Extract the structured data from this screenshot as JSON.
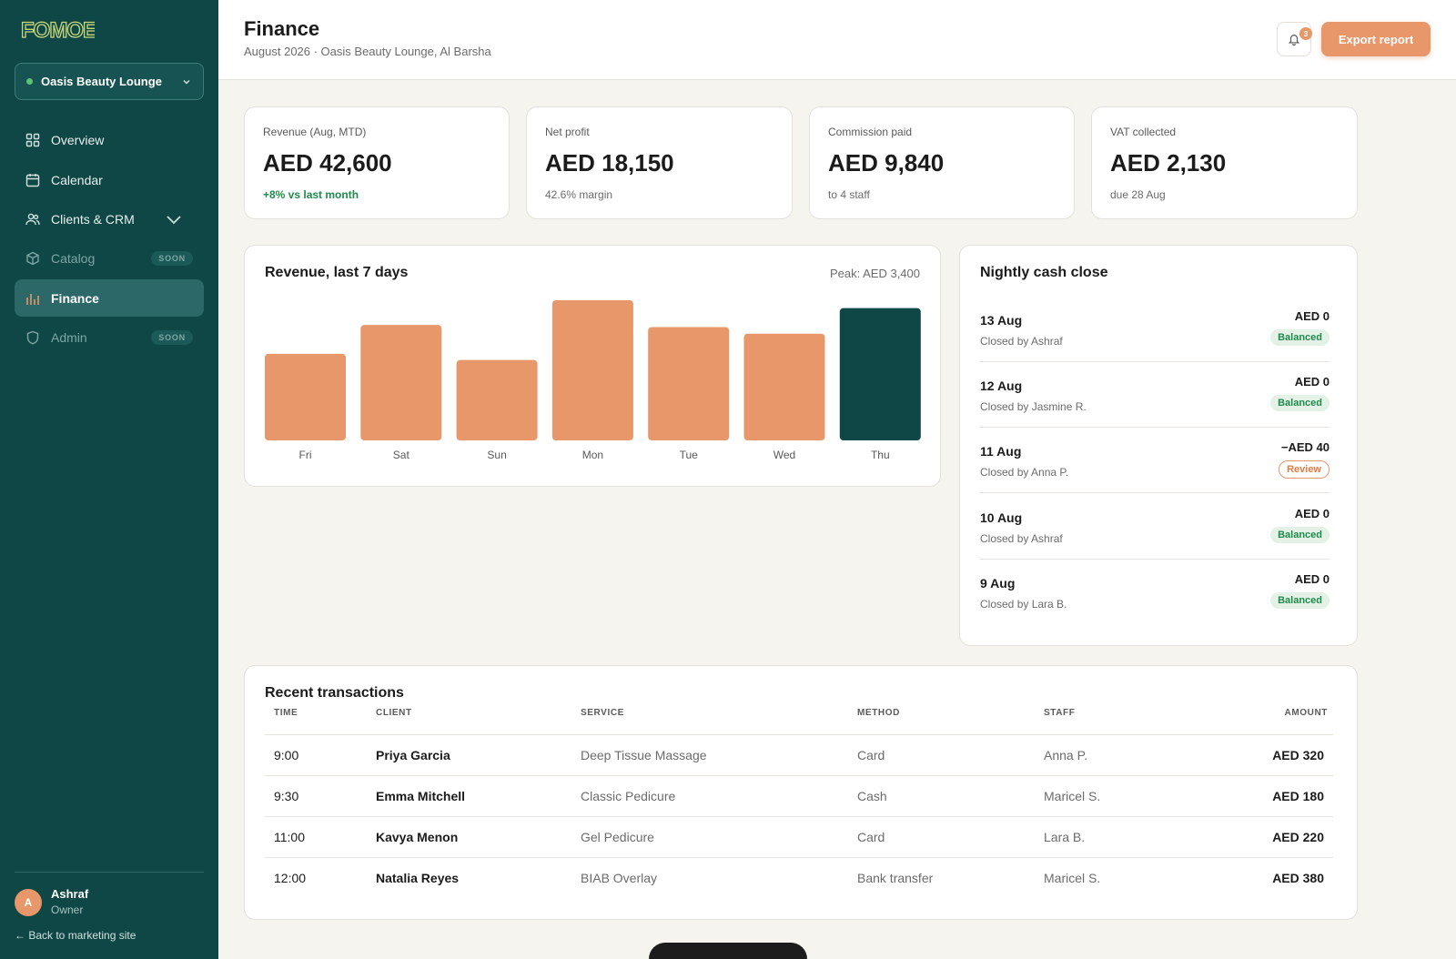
{
  "brand": {
    "logo_text": "FOMOE"
  },
  "sidebar": {
    "location": "Oasis Beauty Lounge",
    "items": [
      {
        "label": "Overview",
        "icon": "grid-icon"
      },
      {
        "label": "Calendar",
        "icon": "calendar-icon"
      },
      {
        "label": "Clients & CRM",
        "icon": "users-icon"
      },
      {
        "label": "Catalog",
        "icon": "box-icon",
        "badge": "SOON"
      },
      {
        "label": "Finance",
        "icon": "bar-chart-icon",
        "active": true
      },
      {
        "label": "Admin",
        "icon": "shield-icon",
        "badge": "SOON"
      }
    ],
    "user": {
      "initial": "A",
      "name": "Ashraf",
      "role": "Owner"
    },
    "back_link": "← Back to marketing site"
  },
  "header": {
    "title": "Finance",
    "subtitle": "August 2026 · Oasis Beauty Lounge, Al Barsha",
    "notifications": "3",
    "export_label": "Export report"
  },
  "kpis": [
    {
      "label": "Revenue (Aug, MTD)",
      "value": "AED 42,600",
      "sub": "+8% vs last month",
      "positive": true
    },
    {
      "label": "Net profit",
      "value": "AED 18,150",
      "sub": "42.6% margin"
    },
    {
      "label": "Commission paid",
      "value": "AED 9,840",
      "sub": "to 4 staff"
    },
    {
      "label": "VAT collected",
      "value": "AED 2,130",
      "sub": "due 28 Aug"
    }
  ],
  "revenue_chart": {
    "title": "Revenue, last 7 days",
    "peak_label": "Peak: AED 3,400"
  },
  "chart_data": {
    "type": "bar",
    "categories": [
      "Fri",
      "Sat",
      "Sun",
      "Mon",
      "Tue",
      "Wed",
      "Thu"
    ],
    "values": [
      2100,
      2800,
      1950,
      3400,
      2750,
      2590,
      3210
    ],
    "ylim": [
      0,
      3400
    ],
    "highlight_index": 6,
    "colors": {
      "default": "#e8976a",
      "highlight": "#0f4747"
    }
  },
  "cash_close": {
    "title": "Nightly cash close",
    "rows": [
      {
        "date": "13 Aug",
        "by": "Closed by Ashraf",
        "amount": "AED 0",
        "status": "Balanced"
      },
      {
        "date": "12 Aug",
        "by": "Closed by Jasmine R.",
        "amount": "AED 0",
        "status": "Balanced"
      },
      {
        "date": "11 Aug",
        "by": "Closed by Anna P.",
        "amount": "−AED 40",
        "status": "Review"
      },
      {
        "date": "10 Aug",
        "by": "Closed by Ashraf",
        "amount": "AED 0",
        "status": "Balanced"
      },
      {
        "date": "9 Aug",
        "by": "Closed by Lara B.",
        "amount": "AED 0",
        "status": "Balanced"
      }
    ]
  },
  "transactions": {
    "title": "Recent transactions",
    "columns": [
      "TIME",
      "CLIENT",
      "SERVICE",
      "METHOD",
      "STAFF",
      "AMOUNT"
    ],
    "rows": [
      {
        "time": "9:00",
        "client": "Priya Garcia",
        "service": "Deep Tissue Massage",
        "method": "Card",
        "staff": "Anna P.",
        "amount": "AED 320"
      },
      {
        "time": "9:30",
        "client": "Emma Mitchell",
        "service": "Classic Pedicure",
        "method": "Cash",
        "staff": "Maricel S.",
        "amount": "AED 180"
      },
      {
        "time": "11:00",
        "client": "Kavya Menon",
        "service": "Gel Pedicure",
        "method": "Card",
        "staff": "Lara B.",
        "amount": "AED 220"
      },
      {
        "time": "12:00",
        "client": "Natalia Reyes",
        "service": "BIAB Overlay",
        "method": "Bank transfer",
        "staff": "Maricel S.",
        "amount": "AED 380"
      }
    ]
  }
}
